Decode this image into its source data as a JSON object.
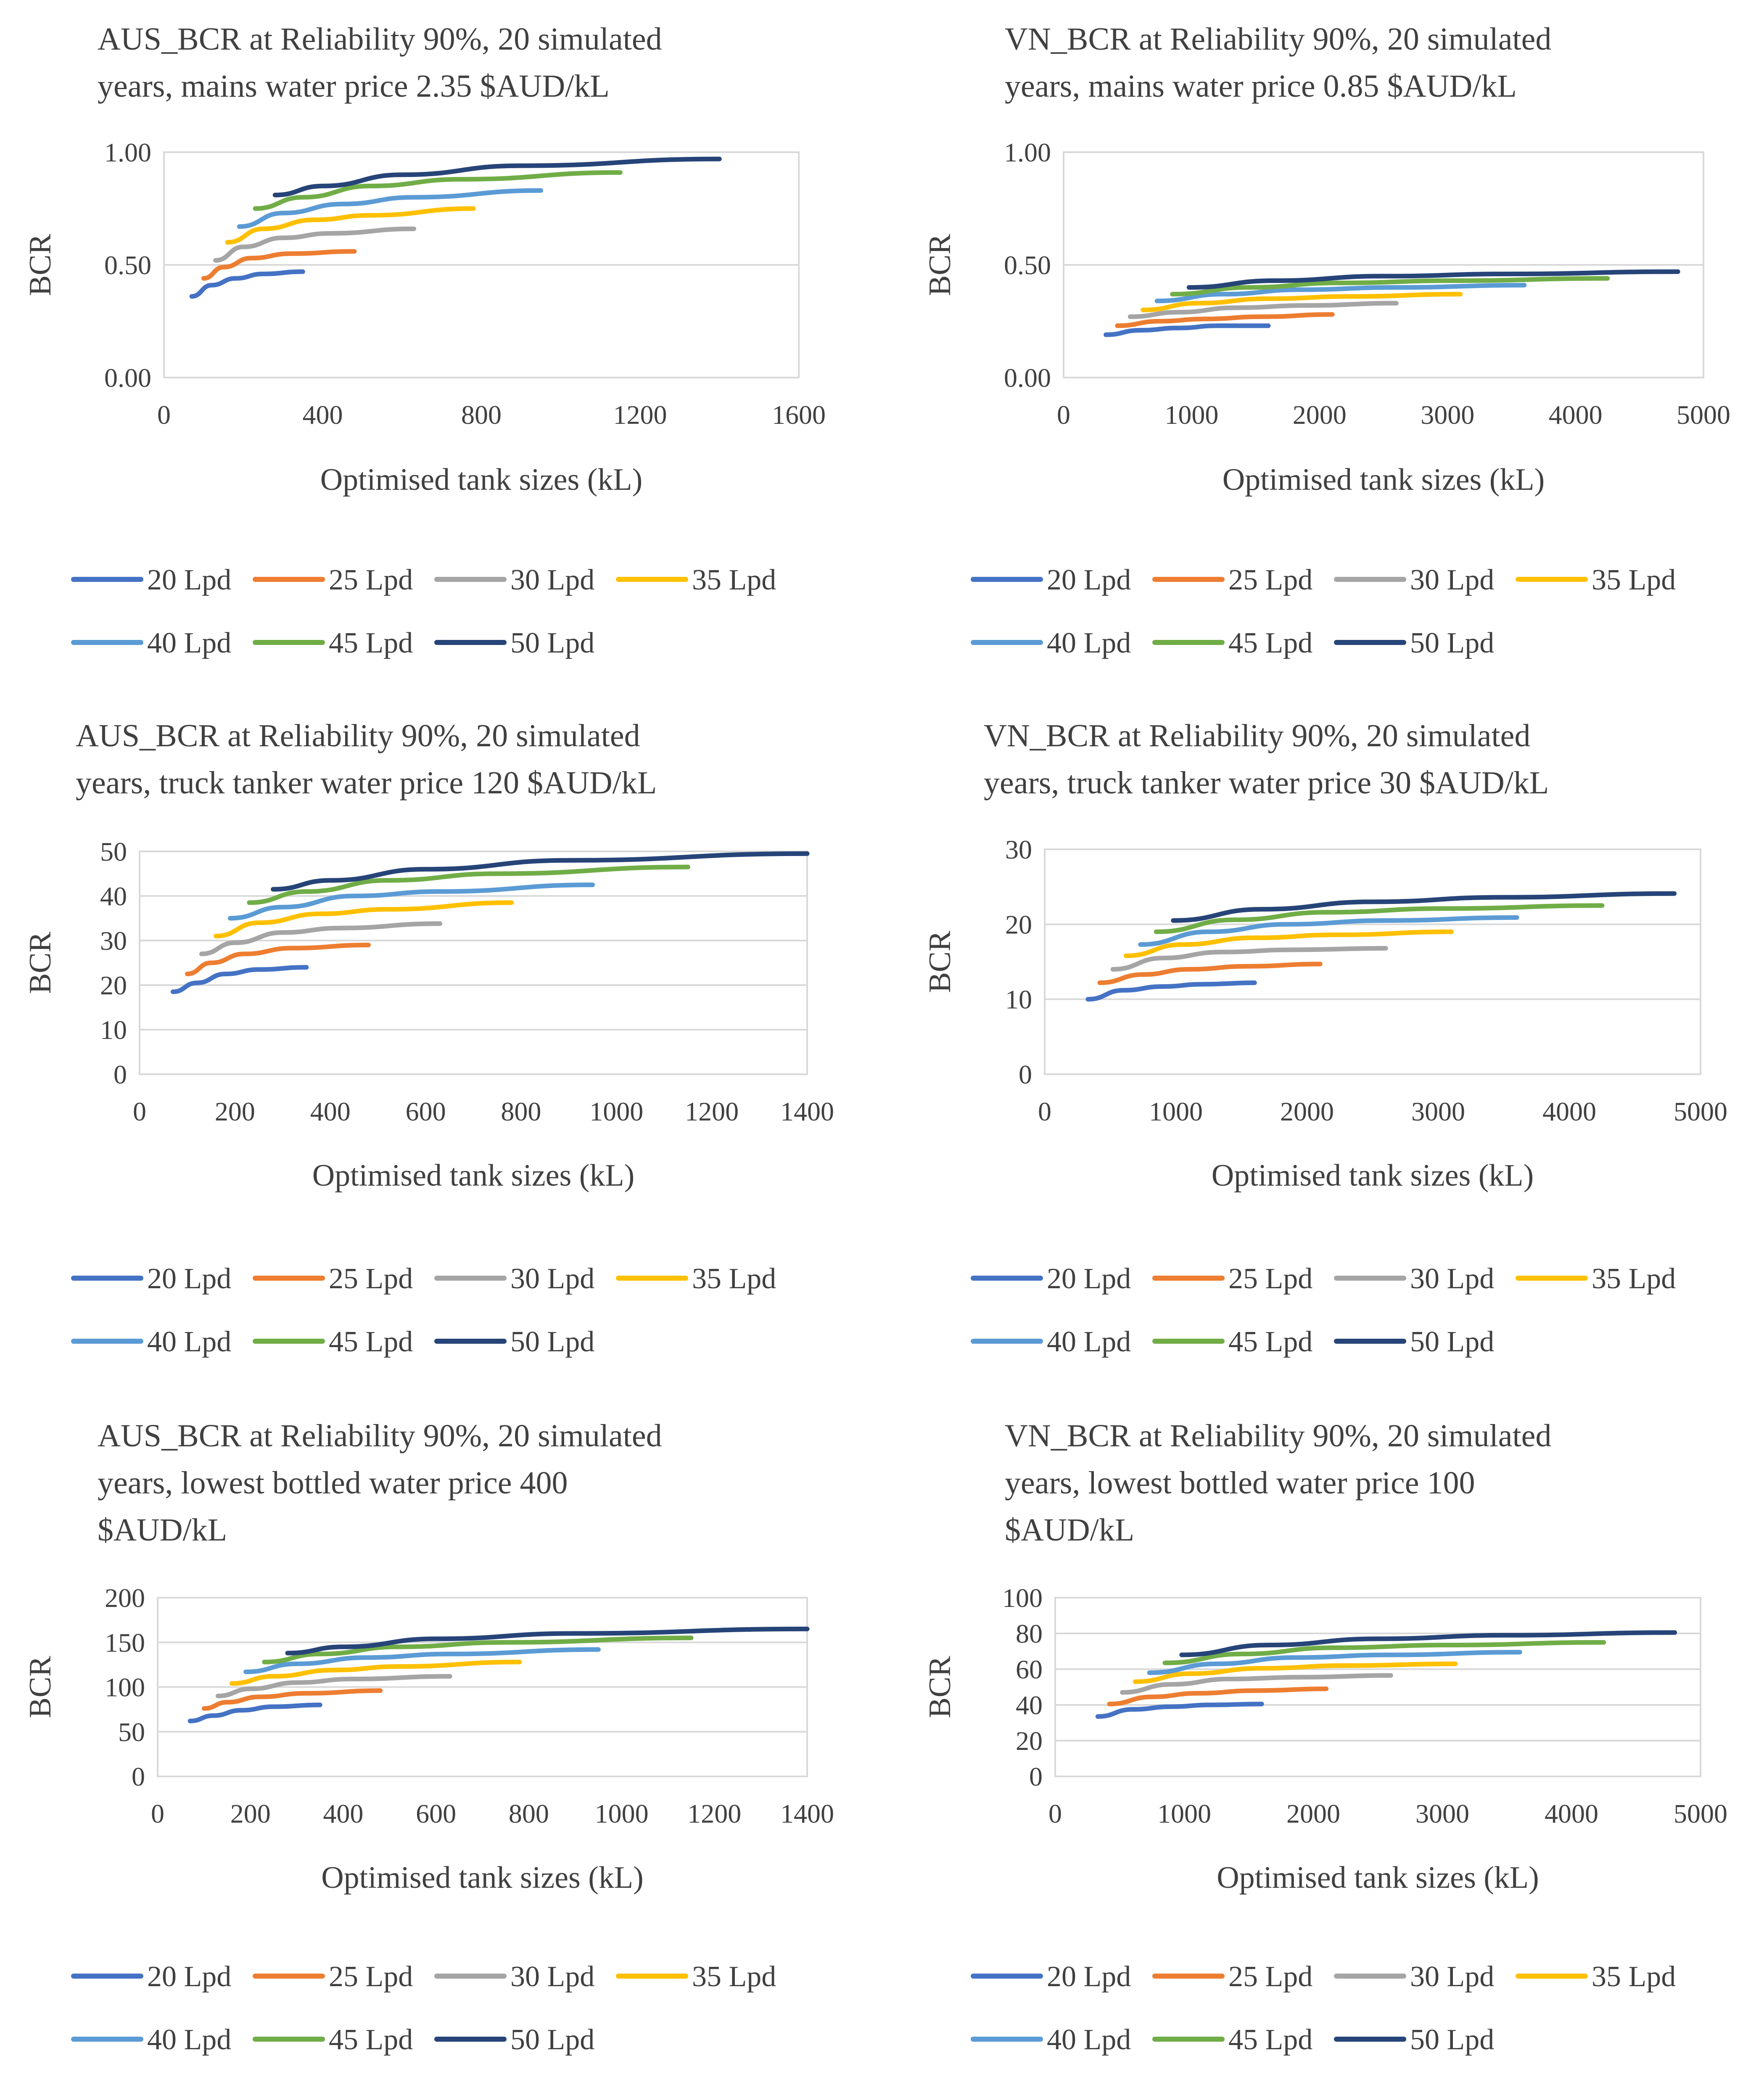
{
  "chart_data": [
    {
      "type": "line",
      "title": [
        "AUS_BCR at Reliability 90%, 20 simulated",
        "years, mains water price 2.35 $AUD/kL"
      ],
      "xlabel": "Optimised tank sizes (kL)",
      "ylabel": "BCR",
      "xlim": [
        0,
        1600
      ],
      "ylim": [
        0,
        1.0
      ],
      "x_ticks": [
        0,
        400,
        800,
        1200,
        1600
      ],
      "y_ticks": [
        0,
        0.5,
        1.0
      ],
      "x_tick_labels": [
        "0",
        "400",
        "800",
        "1200",
        "1600"
      ],
      "y_tick_labels": [
        "0.00",
        "0.50",
        "1.00"
      ],
      "legend": "bottom",
      "series": [
        {
          "name": "20 Lpd",
          "x": [
            70,
            120,
            180,
            250,
            350
          ],
          "y": [
            0.36,
            0.41,
            0.44,
            0.46,
            0.47
          ]
        },
        {
          "name": "25 Lpd",
          "x": [
            100,
            150,
            220,
            320,
            480
          ],
          "y": [
            0.44,
            0.49,
            0.53,
            0.55,
            0.56
          ]
        },
        {
          "name": "30 Lpd",
          "x": [
            130,
            200,
            300,
            420,
            630
          ],
          "y": [
            0.52,
            0.58,
            0.62,
            0.64,
            0.66
          ]
        },
        {
          "name": "35 Lpd",
          "x": [
            160,
            250,
            380,
            520,
            780
          ],
          "y": [
            0.6,
            0.66,
            0.7,
            0.72,
            0.75
          ]
        },
        {
          "name": "40 Lpd",
          "x": [
            190,
            300,
            450,
            630,
            950
          ],
          "y": [
            0.67,
            0.73,
            0.77,
            0.8,
            0.83
          ]
        },
        {
          "name": "45 Lpd",
          "x": [
            230,
            350,
            520,
            750,
            1150
          ],
          "y": [
            0.75,
            0.8,
            0.85,
            0.88,
            0.91
          ]
        },
        {
          "name": "50 Lpd",
          "x": [
            280,
            400,
            600,
            900,
            1400
          ],
          "y": [
            0.81,
            0.85,
            0.9,
            0.94,
            0.97
          ]
        }
      ]
    },
    {
      "type": "line",
      "title": [
        "VN_BCR at Reliability 90%, 20 simulated",
        "years, mains water price 0.85 $AUD/kL"
      ],
      "xlabel": "Optimised tank sizes (kL)",
      "ylabel": "BCR",
      "xlim": [
        0,
        5000
      ],
      "ylim": [
        0,
        1.0
      ],
      "x_ticks": [
        0,
        1000,
        2000,
        3000,
        4000,
        5000
      ],
      "y_ticks": [
        0,
        0.5,
        1.0
      ],
      "x_tick_labels": [
        "0",
        "1000",
        "2000",
        "3000",
        "4000",
        "5000"
      ],
      "y_tick_labels": [
        "0.00",
        "0.50",
        "1.00"
      ],
      "legend": "bottom",
      "series": [
        {
          "name": "20 Lpd",
          "x": [
            330,
            600,
            900,
            1200,
            1600
          ],
          "y": [
            0.19,
            0.21,
            0.22,
            0.23,
            0.23
          ]
        },
        {
          "name": "25 Lpd",
          "x": [
            420,
            750,
            1100,
            1550,
            2100
          ],
          "y": [
            0.23,
            0.25,
            0.26,
            0.27,
            0.28
          ]
        },
        {
          "name": "30 Lpd",
          "x": [
            520,
            900,
            1350,
            1900,
            2600
          ],
          "y": [
            0.27,
            0.29,
            0.31,
            0.32,
            0.33
          ]
        },
        {
          "name": "35 Lpd",
          "x": [
            620,
            1050,
            1600,
            2250,
            3100
          ],
          "y": [
            0.3,
            0.33,
            0.35,
            0.36,
            0.37
          ]
        },
        {
          "name": "40 Lpd",
          "x": [
            730,
            1250,
            1850,
            2600,
            3600
          ],
          "y": [
            0.34,
            0.37,
            0.39,
            0.4,
            0.41
          ]
        },
        {
          "name": "45 Lpd",
          "x": [
            850,
            1450,
            2150,
            3050,
            4250
          ],
          "y": [
            0.37,
            0.4,
            0.42,
            0.43,
            0.44
          ]
        },
        {
          "name": "50 Lpd",
          "x": [
            980,
            1650,
            2500,
            3500,
            4800
          ],
          "y": [
            0.4,
            0.43,
            0.45,
            0.46,
            0.47
          ]
        }
      ]
    },
    {
      "type": "line",
      "title": [
        "AUS_BCR at Reliability 90%, 20 simulated",
        "years, truck tanker water price 120 $AUD/kL"
      ],
      "xlabel": "Optimised tank sizes (kL)",
      "ylabel": "BCR",
      "xlim": [
        0,
        1400
      ],
      "ylim": [
        0,
        50
      ],
      "x_ticks": [
        0,
        200,
        400,
        600,
        800,
        1000,
        1200,
        1400
      ],
      "y_ticks": [
        0,
        10,
        20,
        30,
        40,
        50
      ],
      "x_tick_labels": [
        "0",
        "200",
        "400",
        "600",
        "800",
        "1000",
        "1200",
        "1400"
      ],
      "y_tick_labels": [
        "0",
        "10",
        "20",
        "30",
        "40",
        "50"
      ],
      "legend": "bottom",
      "series": [
        {
          "name": "20 Lpd",
          "x": [
            70,
            120,
            180,
            250,
            350
          ],
          "y": [
            18.5,
            20.5,
            22.5,
            23.5,
            24
          ]
        },
        {
          "name": "25 Lpd",
          "x": [
            100,
            150,
            220,
            320,
            480
          ],
          "y": [
            22.5,
            25,
            27,
            28.3,
            29
          ]
        },
        {
          "name": "30 Lpd",
          "x": [
            130,
            200,
            300,
            420,
            630
          ],
          "y": [
            27,
            29.5,
            31.8,
            32.8,
            33.8
          ]
        },
        {
          "name": "35 Lpd",
          "x": [
            160,
            250,
            380,
            520,
            780
          ],
          "y": [
            31,
            34,
            36,
            37,
            38.5
          ]
        },
        {
          "name": "40 Lpd",
          "x": [
            190,
            300,
            450,
            630,
            950
          ],
          "y": [
            35,
            37.5,
            40,
            41,
            42.5
          ]
        },
        {
          "name": "45 Lpd",
          "x": [
            230,
            350,
            520,
            750,
            1150
          ],
          "y": [
            38.5,
            41,
            43.5,
            45,
            46.5
          ]
        },
        {
          "name": "50 Lpd",
          "x": [
            280,
            400,
            600,
            900,
            1400
          ],
          "y": [
            41.5,
            43.5,
            46,
            48,
            49.5
          ]
        }
      ]
    },
    {
      "type": "line",
      "title": [
        "VN_BCR at Reliability 90%, 20 simulated",
        "years, truck tanker water price 30 $AUD/kL"
      ],
      "xlabel": "Optimised tank sizes (kL)",
      "ylabel": "BCR",
      "xlim": [
        0,
        5000
      ],
      "ylim": [
        0,
        30
      ],
      "x_ticks": [
        0,
        1000,
        2000,
        3000,
        4000,
        5000
      ],
      "y_ticks": [
        0,
        10,
        20,
        30
      ],
      "x_tick_labels": [
        "0",
        "1000",
        "2000",
        "3000",
        "4000",
        "5000"
      ],
      "y_tick_labels": [
        "0",
        "10",
        "20",
        "30"
      ],
      "legend": "bottom",
      "series": [
        {
          "name": "20 Lpd",
          "x": [
            330,
            600,
            900,
            1200,
            1600
          ],
          "y": [
            10,
            11.2,
            11.7,
            12,
            12.2
          ]
        },
        {
          "name": "25 Lpd",
          "x": [
            420,
            750,
            1100,
            1550,
            2100
          ],
          "y": [
            12.2,
            13.3,
            14,
            14.4,
            14.7
          ]
        },
        {
          "name": "30 Lpd",
          "x": [
            520,
            900,
            1350,
            1900,
            2600
          ],
          "y": [
            14,
            15.5,
            16.3,
            16.6,
            16.8
          ]
        },
        {
          "name": "35 Lpd",
          "x": [
            620,
            1050,
            1600,
            2250,
            3100
          ],
          "y": [
            15.8,
            17.3,
            18.2,
            18.6,
            19
          ]
        },
        {
          "name": "40 Lpd",
          "x": [
            730,
            1250,
            1850,
            2600,
            3600
          ],
          "y": [
            17.3,
            19,
            20,
            20.5,
            20.9
          ]
        },
        {
          "name": "45 Lpd",
          "x": [
            850,
            1450,
            2150,
            3050,
            4250
          ],
          "y": [
            19,
            20.6,
            21.6,
            22.1,
            22.5
          ]
        },
        {
          "name": "50 Lpd",
          "x": [
            980,
            1650,
            2500,
            3500,
            4800
          ],
          "y": [
            20.5,
            22,
            23,
            23.6,
            24.1
          ]
        }
      ]
    },
    {
      "type": "line",
      "title": [
        "AUS_BCR at Reliability 90%, 20 simulated",
        "years, lowest bottled water price 400",
        "$AUD/kL"
      ],
      "xlabel": "Optimised tank sizes (kL)",
      "ylabel": "BCR",
      "xlim": [
        0,
        1400
      ],
      "ylim": [
        0,
        200
      ],
      "x_ticks": [
        0,
        200,
        400,
        600,
        800,
        1000,
        1200,
        1400
      ],
      "y_ticks": [
        0,
        50,
        100,
        150,
        200
      ],
      "x_tick_labels": [
        "0",
        "200",
        "400",
        "600",
        "800",
        "1000",
        "1200",
        "1400"
      ],
      "y_tick_labels": [
        "0",
        "50",
        "100",
        "150",
        "200"
      ],
      "legend": "bottom",
      "series": [
        {
          "name": "20 Lpd",
          "x": [
            70,
            120,
            180,
            250,
            350
          ],
          "y": [
            62,
            68,
            74,
            78,
            80
          ]
        },
        {
          "name": "25 Lpd",
          "x": [
            100,
            150,
            220,
            320,
            480
          ],
          "y": [
            76,
            83,
            89,
            93,
            96
          ]
        },
        {
          "name": "30 Lpd",
          "x": [
            130,
            200,
            300,
            420,
            630
          ],
          "y": [
            90,
            98,
            105,
            109,
            112
          ]
        },
        {
          "name": "35 Lpd",
          "x": [
            160,
            250,
            380,
            520,
            780
          ],
          "y": [
            104,
            112,
            119,
            123,
            128
          ]
        },
        {
          "name": "40 Lpd",
          "x": [
            190,
            300,
            450,
            630,
            950
          ],
          "y": [
            117,
            126,
            133,
            137,
            142
          ]
        },
        {
          "name": "45 Lpd",
          "x": [
            230,
            350,
            520,
            750,
            1150
          ],
          "y": [
            128,
            137,
            145,
            150,
            155
          ]
        },
        {
          "name": "50 Lpd",
          "x": [
            280,
            400,
            600,
            900,
            1400
          ],
          "y": [
            138,
            145,
            154,
            160,
            165
          ]
        }
      ]
    },
    {
      "type": "line",
      "title": [
        "VN_BCR at Reliability 90%, 20 simulated",
        "years, lowest bottled water price 100",
        "$AUD/kL"
      ],
      "xlabel": "Optimised tank sizes (kL)",
      "ylabel": "BCR",
      "xlim": [
        0,
        5000
      ],
      "ylim": [
        0,
        100
      ],
      "x_ticks": [
        0,
        1000,
        2000,
        3000,
        4000,
        5000
      ],
      "y_ticks": [
        0,
        20,
        40,
        60,
        80,
        100
      ],
      "x_tick_labels": [
        "0",
        "1000",
        "2000",
        "3000",
        "4000",
        "5000"
      ],
      "y_tick_labels": [
        "0",
        "20",
        "40",
        "60",
        "80",
        "100"
      ],
      "legend": "bottom",
      "series": [
        {
          "name": "20 Lpd",
          "x": [
            330,
            600,
            900,
            1200,
            1600
          ],
          "y": [
            33.5,
            37.5,
            39,
            40,
            40.5
          ]
        },
        {
          "name": "25 Lpd",
          "x": [
            420,
            750,
            1100,
            1550,
            2100
          ],
          "y": [
            40.5,
            44.5,
            46.5,
            48,
            49
          ]
        },
        {
          "name": "30 Lpd",
          "x": [
            520,
            900,
            1350,
            1900,
            2600
          ],
          "y": [
            47,
            51.5,
            54.5,
            55.5,
            56.5
          ]
        },
        {
          "name": "35 Lpd",
          "x": [
            620,
            1050,
            1600,
            2250,
            3100
          ],
          "y": [
            53,
            57.5,
            60.5,
            62,
            63
          ]
        },
        {
          "name": "40 Lpd",
          "x": [
            730,
            1250,
            1850,
            2600,
            3600
          ],
          "y": [
            58,
            63,
            66.5,
            68,
            69.5
          ]
        },
        {
          "name": "45 Lpd",
          "x": [
            850,
            1450,
            2150,
            3050,
            4250
          ],
          "y": [
            63.5,
            68.5,
            72,
            73.5,
            75
          ]
        },
        {
          "name": "50 Lpd",
          "x": [
            980,
            1650,
            2500,
            3500,
            4800
          ],
          "y": [
            68,
            73.5,
            77,
            79,
            80.5
          ]
        }
      ]
    }
  ],
  "colors": {
    "20 Lpd": "#4472c4",
    "25 Lpd": "#ed7d31",
    "30 Lpd": "#a5a5a5",
    "35 Lpd": "#ffc000",
    "40 Lpd": "#5b9bd5",
    "45 Lpd": "#70ad47",
    "50 Lpd": "#264478"
  }
}
